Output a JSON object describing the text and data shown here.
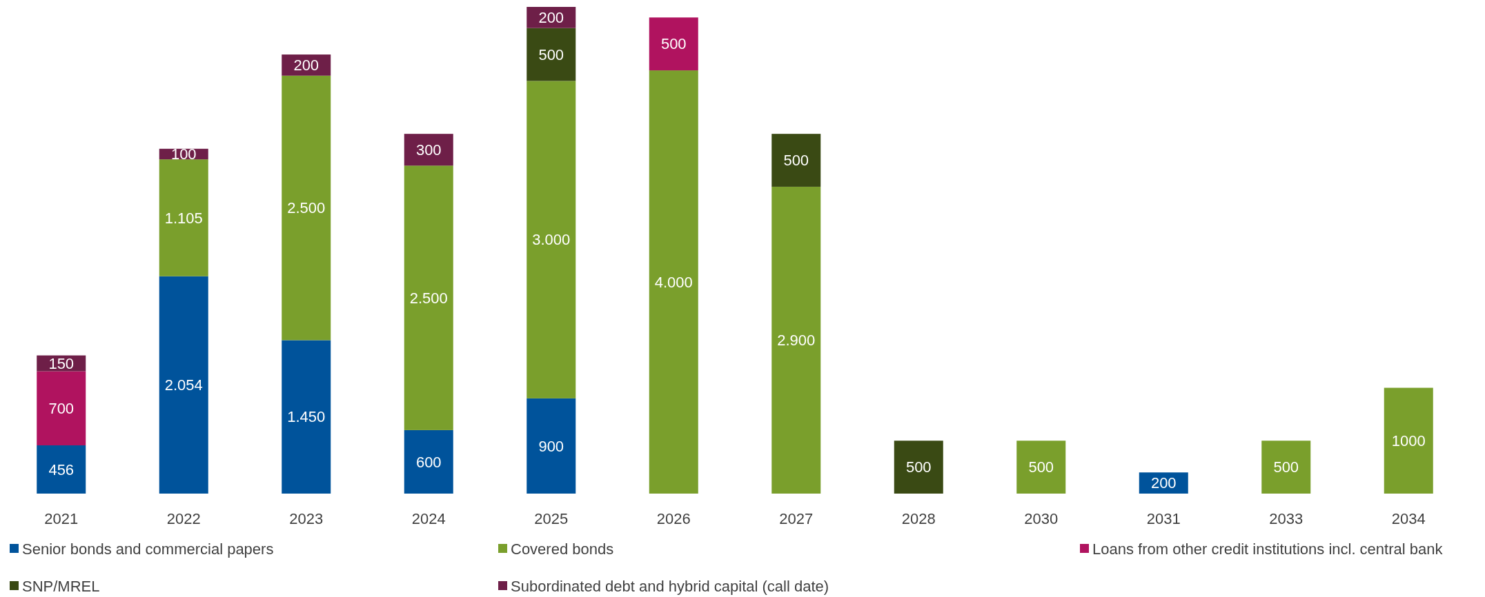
{
  "chart_data": {
    "type": "bar",
    "stacked": true,
    "legend": "bottom",
    "data_labels": true,
    "categories": [
      "2021",
      "2022",
      "2023",
      "2024",
      "2025",
      "2026",
      "2027",
      "2028",
      "2030",
      "2031",
      "2033",
      "2034"
    ],
    "series": [
      {
        "name": "Senior bonds and commercial papers",
        "color": "#00539b",
        "values": [
          456,
          2054,
          1450,
          600,
          900,
          null,
          null,
          null,
          null,
          200,
          null,
          null
        ],
        "value_labels": [
          "456",
          "2.054",
          "1.450",
          "600",
          "900",
          null,
          null,
          null,
          null,
          "200",
          null,
          null
        ]
      },
      {
        "name": "Covered bonds",
        "color": "#7a9f2c",
        "values": [
          null,
          1105,
          2500,
          2500,
          3000,
          4000,
          2900,
          null,
          500,
          null,
          500,
          1000
        ],
        "value_labels": [
          null,
          "1.105",
          "2.500",
          "2.500",
          "3.000",
          "4.000",
          "2.900",
          null,
          "500",
          null,
          "500",
          "1000"
        ]
      },
      {
        "name": "Loans from other credit institutions incl. central bank",
        "color": "#b0135f",
        "values": [
          700,
          null,
          null,
          null,
          null,
          500,
          null,
          null,
          null,
          null,
          null,
          null
        ],
        "value_labels": [
          "700",
          null,
          null,
          null,
          null,
          "500",
          null,
          null,
          null,
          null,
          null,
          null
        ]
      },
      {
        "name": "SNP/MREL",
        "color": "#3a4a14",
        "values": [
          null,
          null,
          null,
          null,
          500,
          null,
          500,
          500,
          null,
          null,
          null,
          null
        ],
        "value_labels": [
          null,
          null,
          null,
          null,
          "500",
          null,
          "500",
          "500",
          null,
          null,
          null,
          null
        ]
      },
      {
        "name": "Subordinated debt and hybrid capital (call date)",
        "color": "#6e1f48",
        "values": [
          150,
          100,
          200,
          300,
          200,
          null,
          null,
          null,
          null,
          null,
          null,
          null
        ],
        "value_labels": [
          "150",
          "100",
          "200",
          "300",
          "200",
          null,
          null,
          null,
          null,
          null,
          null,
          null
        ]
      }
    ]
  }
}
